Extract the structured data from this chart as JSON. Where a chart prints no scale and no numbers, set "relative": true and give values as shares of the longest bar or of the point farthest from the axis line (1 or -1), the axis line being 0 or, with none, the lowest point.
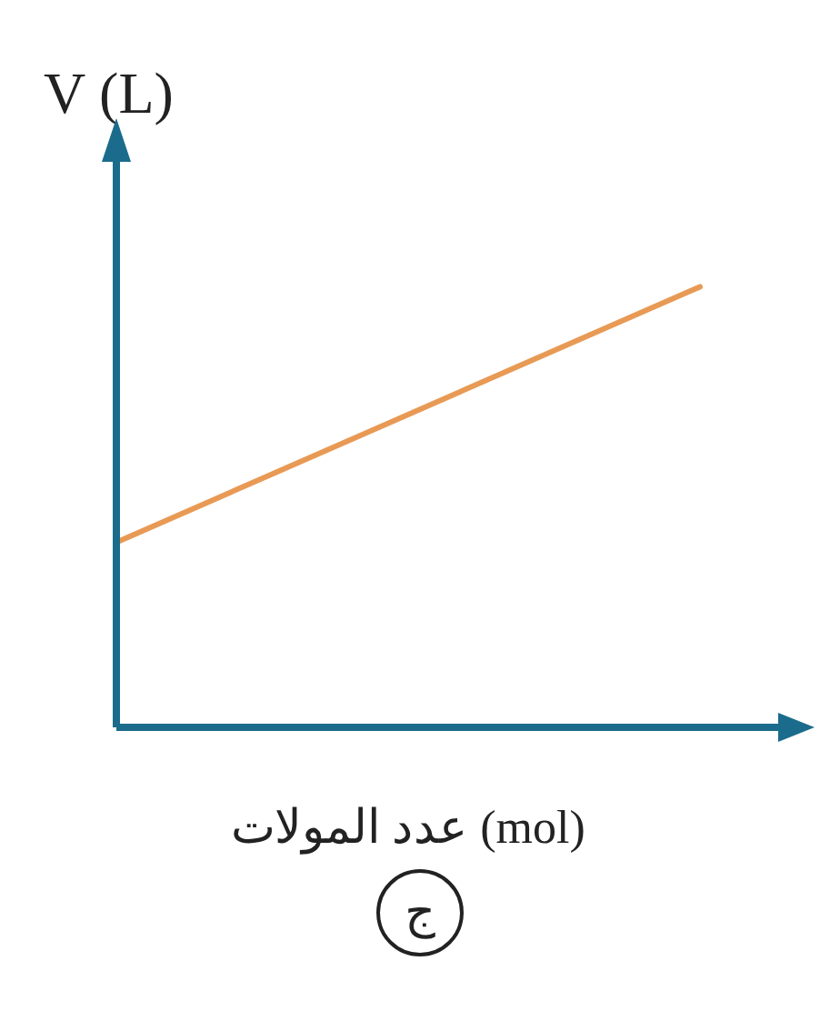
{
  "chart_data": {
    "type": "line",
    "relative": true,
    "ylabel": "V (L)",
    "xlabel": "عدد المولات (mol)",
    "categories": [
      null,
      null
    ],
    "series": [
      {
        "color": "#e89a55",
        "values": [
          0.42,
          1
        ]
      }
    ],
    "annotations": [
      "ج"
    ],
    "marker": "none",
    "line_style": "solid"
  }
}
